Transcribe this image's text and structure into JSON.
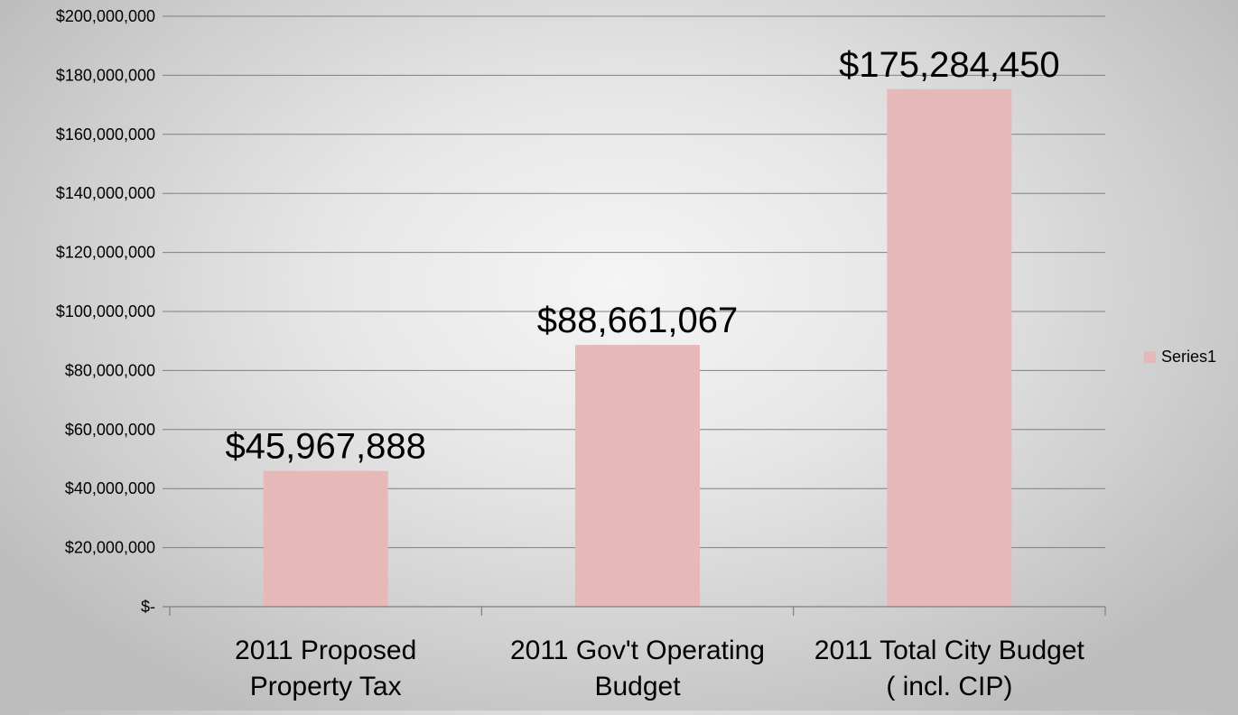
{
  "chart_data": {
    "type": "bar",
    "categories": [
      [
        "2011 Proposed",
        "Property Tax"
      ],
      [
        "2011 Gov't Operating",
        "Budget"
      ],
      [
        "2011 Total City Budget",
        "( incl. CIP)"
      ]
    ],
    "series": [
      {
        "name": "Series1",
        "values": [
          45967888,
          88661067,
          175284450
        ],
        "data_labels": [
          "$45,967,888",
          "$88,661,067",
          "$175,284,450"
        ],
        "color": "#e6b8b8"
      }
    ],
    "ylim": [
      0,
      200000000
    ],
    "y_ticks": [
      {
        "value": 0,
        "label": "$-"
      },
      {
        "value": 20000000,
        "label": "$20,000,000"
      },
      {
        "value": 40000000,
        "label": "$40,000,000"
      },
      {
        "value": 60000000,
        "label": "$60,000,000"
      },
      {
        "value": 80000000,
        "label": "$80,000,000"
      },
      {
        "value": 100000000,
        "label": "$100,000,000"
      },
      {
        "value": 120000000,
        "label": "$120,000,000"
      },
      {
        "value": 140000000,
        "label": "$140,000,000"
      },
      {
        "value": 160000000,
        "label": "$160,000,000"
      },
      {
        "value": 180000000,
        "label": "$180,000,000"
      },
      {
        "value": 200000000,
        "label": "$200,000,000"
      }
    ],
    "grid": true,
    "gridline_color": "#7f7f7f",
    "legend_position": "right"
  }
}
